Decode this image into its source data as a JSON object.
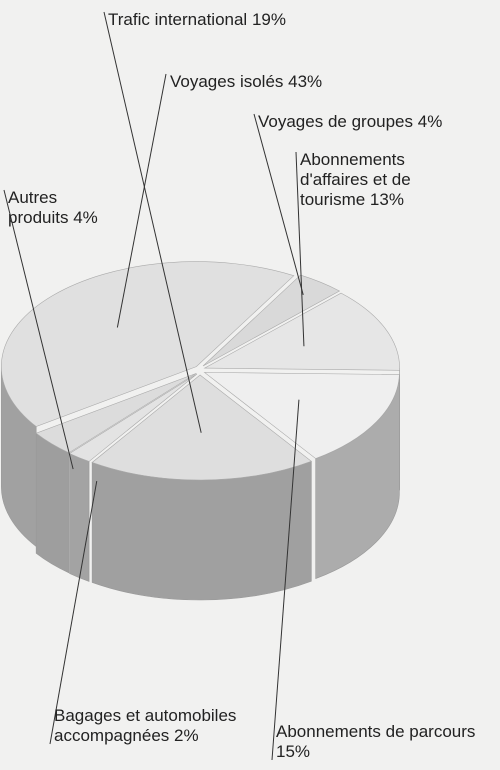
{
  "chart_data": {
    "type": "pie",
    "categories": [
      "Voyages de groupes",
      "Abonnements d'affaires et de tourisme",
      "Abonnements de parcours",
      "Trafic international",
      "Bagages et automobiles accompagnées",
      "Autres produits",
      "Voyages isolés"
    ],
    "values": [
      4,
      13,
      15,
      19,
      2,
      4,
      43
    ],
    "value_labels": [
      "4%",
      "13%",
      "15%",
      "19%",
      "2%",
      "4%",
      "43%"
    ],
    "colors": [
      "#d9d9d9",
      "#e6e6e6",
      "#efefef",
      "#dedede",
      "#e3e3e3",
      "#dcdcdc",
      "#e0e0e0"
    ]
  }
}
